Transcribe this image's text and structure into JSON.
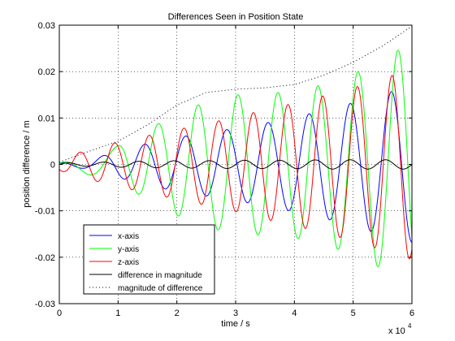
{
  "chart_data": {
    "type": "line",
    "title": "Differences Seen in Position State",
    "xlabel": "time / s",
    "ylabel": "position difference / m",
    "x_multiplier_label": "x 10",
    "x_multiplier_exp": "4",
    "xlim": [
      0,
      60000
    ],
    "ylim": [
      -0.03,
      0.03
    ],
    "x_ticks": [
      0,
      10000,
      20000,
      30000,
      40000,
      50000,
      60000
    ],
    "x_tick_labels": [
      "0",
      "1",
      "2",
      "3",
      "4",
      "5",
      "6"
    ],
    "y_ticks": [
      -0.03,
      -0.02,
      -0.01,
      0,
      0.01,
      0.02,
      0.03
    ],
    "y_tick_labels": [
      "-0.03",
      "-0.02",
      "-0.01",
      "0",
      "0.01",
      "0.02",
      "0.03"
    ],
    "grid": true,
    "legend_position": "bottom-left",
    "x": [
      0,
      5000,
      10000,
      15000,
      20000,
      25000,
      30000,
      35000,
      40000,
      45000,
      50000,
      55000,
      60000
    ],
    "series": [
      {
        "name": "x-axis",
        "color": "#0000ff",
        "style": "solid",
        "envelope": [
          0.0003,
          0.001,
          0.0028,
          0.0045,
          0.0058,
          0.0068,
          0.0078,
          0.0089,
          0.0102,
          0.0116,
          0.0133,
          0.0152,
          0.0168
        ],
        "peak_times": [
          0,
          7500,
          14500,
          21500,
          28500,
          35500,
          42500,
          49500,
          56500
        ]
      },
      {
        "name": "y-axis",
        "color": "#00ff00",
        "style": "solid",
        "envelope": [
          0.0003,
          0.0022,
          0.004,
          0.0075,
          0.011,
          0.0135,
          0.015,
          0.0152,
          0.0158,
          0.0172,
          0.0195,
          0.0225,
          0.0265
        ],
        "peak_times": [
          0,
          10000,
          16800,
          23600,
          30400,
          37200,
          44000,
          50800,
          57600
        ]
      },
      {
        "name": "z-axis",
        "color": "#ff0000",
        "style": "solid",
        "envelope": [
          0.0013,
          0.0032,
          0.0048,
          0.0062,
          0.0075,
          0.0088,
          0.0102,
          0.0118,
          0.0132,
          0.0148,
          0.0165,
          0.0185,
          0.0205
        ],
        "peak_times": [
          3500,
          9400,
          15300,
          21200,
          27100,
          33000,
          38900,
          44800,
          50700,
          56600
        ]
      },
      {
        "name": "difference in magnitude",
        "color": "#000000",
        "style": "solid",
        "envelope": [
          0.0003,
          0.0004,
          0.0006,
          0.0007,
          0.0008,
          0.0008,
          0.0009,
          0.0009,
          0.0009,
          0.001,
          0.001,
          0.001,
          0.001
        ],
        "period": 6000
      },
      {
        "name": "magnitude of difference",
        "color": "#000000",
        "style": "dotted",
        "upper": [
          0.0005,
          0.0028,
          0.005,
          0.0085,
          0.0128,
          0.0155,
          0.0162,
          0.0165,
          0.0172,
          0.0192,
          0.022,
          0.0255,
          0.0298
        ]
      }
    ]
  }
}
